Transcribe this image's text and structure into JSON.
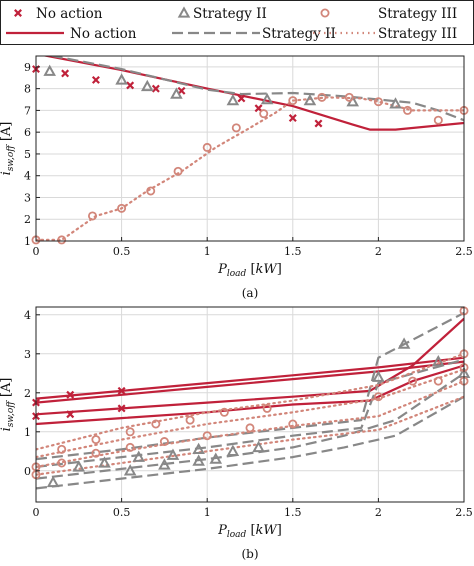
{
  "legend": {
    "items": [
      {
        "label": "No action",
        "kind": "marker",
        "marker": "x",
        "color": "#c0213a"
      },
      {
        "label": "Strategy II",
        "kind": "marker",
        "marker": "triangle",
        "color": "#888888"
      },
      {
        "label": "Strategy III",
        "kind": "marker",
        "marker": "circle",
        "color": "#d2867a"
      },
      {
        "label": "No action",
        "kind": "line",
        "dash": "solid",
        "color": "#c0213a"
      },
      {
        "label": "Strategy II",
        "kind": "line",
        "dash": "dashed",
        "color": "#888888"
      },
      {
        "label": "Strategy III",
        "kind": "line",
        "dash": "dotted",
        "color": "#d2867a"
      }
    ]
  },
  "colors": {
    "no_action": "#c0213a",
    "strategy2": "#888888",
    "strategy3": "#d2867a"
  },
  "chart_data": [
    {
      "type": "line",
      "caption": "(a)",
      "xlabel": "P_load [kW]",
      "ylabel": "i_sw,off [A]",
      "xlim": [
        0,
        2.5
      ],
      "ylim": [
        1,
        9.5
      ],
      "xticks": [
        0,
        0.5,
        1,
        1.5,
        2,
        2.5
      ],
      "yticks": [
        1,
        2,
        3,
        4,
        5,
        6,
        7,
        8,
        9
      ],
      "grid": true,
      "series": [
        {
          "name": "No action",
          "style": "line",
          "points": [
            [
              0,
              9.6
            ],
            [
              0.5,
              8.85
            ],
            [
              1,
              8.0
            ],
            [
              1.5,
              7.2
            ],
            [
              1.85,
              6.35
            ],
            [
              1.95,
              6.12
            ],
            [
              2.1,
              6.12
            ],
            [
              2.5,
              6.42
            ]
          ]
        },
        {
          "name": "Strategy II",
          "style": "line",
          "points": [
            [
              0,
              9.65
            ],
            [
              0.5,
              8.9
            ],
            [
              1,
              7.95
            ],
            [
              1.2,
              7.75
            ],
            [
              1.5,
              7.8
            ],
            [
              1.8,
              7.65
            ],
            [
              2.0,
              7.5
            ],
            [
              2.2,
              7.35
            ],
            [
              2.35,
              7.0
            ],
            [
              2.5,
              6.55
            ]
          ]
        },
        {
          "name": "Strategy III",
          "style": "line",
          "points": [
            [
              0,
              1.05
            ],
            [
              0.15,
              1.05
            ],
            [
              0.35,
              2.15
            ],
            [
              0.5,
              2.5
            ],
            [
              0.65,
              3.3
            ],
            [
              0.85,
              4.2
            ],
            [
              1.05,
              5.3
            ],
            [
              1.25,
              6.2
            ],
            [
              1.4,
              6.9
            ],
            [
              1.5,
              7.45
            ],
            [
              1.7,
              7.6
            ],
            [
              1.9,
              7.55
            ],
            [
              2.0,
              7.4
            ],
            [
              2.2,
              7.0
            ],
            [
              2.5,
              7.0
            ]
          ]
        },
        {
          "name": "No action",
          "style": "marker",
          "marker": "x",
          "points": [
            [
              0,
              8.9
            ],
            [
              0.17,
              8.7
            ],
            [
              0.35,
              8.4
            ],
            [
              0.55,
              8.15
            ],
            [
              0.7,
              8.0
            ],
            [
              0.85,
              7.9
            ],
            [
              1.2,
              7.55
            ],
            [
              1.3,
              7.1
            ],
            [
              1.5,
              6.65
            ],
            [
              1.65,
              6.4
            ]
          ]
        },
        {
          "name": "Strategy II",
          "style": "marker",
          "marker": "triangle",
          "points": [
            [
              0.08,
              8.8
            ],
            [
              0.5,
              8.4
            ],
            [
              0.65,
              8.1
            ],
            [
              0.82,
              7.75
            ],
            [
              1.15,
              7.45
            ],
            [
              1.35,
              7.5
            ],
            [
              1.6,
              7.45
            ],
            [
              1.85,
              7.4
            ],
            [
              2.1,
              7.3
            ]
          ]
        },
        {
          "name": "Strategy III",
          "style": "marker",
          "marker": "circle",
          "points": [
            [
              0,
              1.05
            ],
            [
              0.15,
              1.05
            ],
            [
              0.33,
              2.15
            ],
            [
              0.5,
              2.5
            ],
            [
              0.67,
              3.3
            ],
            [
              0.83,
              4.2
            ],
            [
              1.0,
              5.3
            ],
            [
              1.17,
              6.2
            ],
            [
              1.33,
              6.85
            ],
            [
              1.5,
              7.45
            ],
            [
              1.67,
              7.6
            ],
            [
              1.83,
              7.6
            ],
            [
              2.0,
              7.4
            ],
            [
              2.17,
              7.0
            ],
            [
              2.35,
              6.55
            ],
            [
              2.5,
              7.0
            ]
          ]
        }
      ]
    },
    {
      "type": "line",
      "caption": "(b)",
      "xlabel": "P_load [kW]",
      "ylabel": "i_sw,off [A]",
      "xlim": [
        0,
        2.5
      ],
      "ylim": [
        -0.8,
        4.2
      ],
      "xticks": [
        0,
        0.5,
        1,
        1.5,
        2,
        2.5
      ],
      "yticks": [
        0,
        1,
        2,
        3,
        4
      ],
      "grid": true,
      "series": [
        {
          "name": "No action",
          "style": "line",
          "points": [
            [
              0,
              1.85
            ],
            [
              0.5,
              2.05
            ],
            [
              1,
              2.25
            ],
            [
              1.5,
              2.45
            ],
            [
              2,
              2.65
            ],
            [
              2.5,
              2.9
            ]
          ]
        },
        {
          "name": "No action",
          "style": "line",
          "points": [
            [
              0,
              1.75
            ],
            [
              0.5,
              1.95
            ],
            [
              1,
              2.15
            ],
            [
              1.5,
              2.35
            ],
            [
              2,
              2.55
            ],
            [
              2.5,
              2.8
            ]
          ]
        },
        {
          "name": "No action",
          "style": "line",
          "points": [
            [
              0,
              1.45
            ],
            [
              0.5,
              1.6
            ],
            [
              1,
              1.75
            ],
            [
              1.5,
              1.9
            ],
            [
              1.95,
              2.05
            ],
            [
              2.2,
              2.7
            ],
            [
              2.5,
              3.9
            ]
          ]
        },
        {
          "name": "No action",
          "style": "line",
          "points": [
            [
              0,
              1.2
            ],
            [
              0.5,
              1.35
            ],
            [
              1,
              1.5
            ],
            [
              1.5,
              1.7
            ],
            [
              1.95,
              1.8
            ],
            [
              2.2,
              2.3
            ],
            [
              2.5,
              2.7
            ]
          ]
        },
        {
          "name": "Strategy II",
          "style": "line",
          "points": [
            [
              0,
              0.3
            ],
            [
              0.5,
              0.55
            ],
            [
              1,
              0.85
            ],
            [
              1.5,
              1.1
            ],
            [
              1.9,
              1.3
            ],
            [
              2.0,
              2.9
            ],
            [
              2.5,
              4.05
            ]
          ]
        },
        {
          "name": "Strategy II",
          "style": "line",
          "points": [
            [
              0,
              0.1
            ],
            [
              0.5,
              0.35
            ],
            [
              1,
              0.6
            ],
            [
              1.5,
              0.9
            ],
            [
              1.9,
              1.1
            ],
            [
              2.0,
              2.25
            ],
            [
              2.5,
              2.85
            ]
          ]
        },
        {
          "name": "Strategy II",
          "style": "line",
          "points": [
            [
              0,
              -0.2
            ],
            [
              0.5,
              0.05
            ],
            [
              1,
              0.3
            ],
            [
              1.5,
              0.6
            ],
            [
              1.8,
              0.9
            ],
            [
              2.1,
              1.3
            ],
            [
              2.5,
              2.5
            ]
          ]
        },
        {
          "name": "Strategy II",
          "style": "line",
          "points": [
            [
              0,
              -0.45
            ],
            [
              0.5,
              -0.2
            ],
            [
              1,
              0.05
            ],
            [
              1.5,
              0.35
            ],
            [
              1.8,
              0.6
            ],
            [
              2.1,
              0.9
            ],
            [
              2.5,
              1.9
            ]
          ]
        },
        {
          "name": "Strategy III",
          "style": "line",
          "points": [
            [
              0,
              0.55
            ],
            [
              0.5,
              1.1
            ],
            [
              1,
              1.5
            ],
            [
              1.5,
              1.8
            ],
            [
              2.0,
              2.2
            ],
            [
              2.5,
              3.0
            ]
          ]
        },
        {
          "name": "Strategy III",
          "style": "line",
          "points": [
            [
              0,
              0.35
            ],
            [
              0.5,
              0.8
            ],
            [
              1,
              1.2
            ],
            [
              1.5,
              1.5
            ],
            [
              2.0,
              1.85
            ],
            [
              2.5,
              2.6
            ]
          ]
        },
        {
          "name": "Strategy III",
          "style": "line",
          "points": [
            [
              0,
              0.1
            ],
            [
              0.5,
              0.5
            ],
            [
              1,
              0.85
            ],
            [
              1.5,
              1.15
            ],
            [
              2.0,
              1.4
            ],
            [
              2.5,
              2.3
            ]
          ]
        },
        {
          "name": "Strategy III",
          "style": "line",
          "points": [
            [
              0,
              -0.1
            ],
            [
              0.5,
              0.2
            ],
            [
              1,
              0.5
            ],
            [
              1.5,
              0.8
            ],
            [
              2.0,
              1.05
            ],
            [
              2.5,
              1.9
            ]
          ]
        },
        {
          "name": "No action",
          "style": "marker",
          "marker": "x",
          "points": [
            [
              0,
              1.75
            ],
            [
              0.2,
              1.95
            ],
            [
              0.5,
              2.05
            ],
            [
              0,
              1.4
            ],
            [
              0.2,
              1.45
            ],
            [
              0.5,
              1.6
            ]
          ]
        },
        {
          "name": "Strategy II",
          "style": "marker",
          "marker": "triangle",
          "points": [
            [
              0.1,
              -0.3
            ],
            [
              0.25,
              0.1
            ],
            [
              0.4,
              0.2
            ],
            [
              0.6,
              0.35
            ],
            [
              0.8,
              0.4
            ],
            [
              0.95,
              0.55
            ],
            [
              1.05,
              0.3
            ],
            [
              1.15,
              0.5
            ],
            [
              1.3,
              0.6
            ],
            [
              0.55,
              0.0
            ],
            [
              0.75,
              0.15
            ],
            [
              0.95,
              0.25
            ],
            [
              2.0,
              2.4
            ],
            [
              2.15,
              3.25
            ],
            [
              2.35,
              2.8
            ],
            [
              2.5,
              2.5
            ]
          ]
        },
        {
          "name": "Strategy III",
          "style": "marker",
          "marker": "circle",
          "points": [
            [
              0,
              0.1
            ],
            [
              0.15,
              0.55
            ],
            [
              0.35,
              0.8
            ],
            [
              0.55,
              1.0
            ],
            [
              0.7,
              1.2
            ],
            [
              0.9,
              1.3
            ],
            [
              1.1,
              1.5
            ],
            [
              1.35,
              1.6
            ],
            [
              0,
              -0.1
            ],
            [
              0.15,
              0.2
            ],
            [
              0.35,
              0.45
            ],
            [
              0.55,
              0.6
            ],
            [
              0.75,
              0.75
            ],
            [
              1.0,
              0.9
            ],
            [
              1.25,
              1.1
            ],
            [
              1.5,
              1.2
            ],
            [
              2.0,
              1.9
            ],
            [
              2.2,
              2.3
            ],
            [
              2.35,
              2.3
            ],
            [
              2.5,
              2.65
            ],
            [
              2.5,
              3.0
            ],
            [
              2.5,
              4.1
            ],
            [
              2.5,
              2.3
            ]
          ]
        }
      ]
    }
  ]
}
